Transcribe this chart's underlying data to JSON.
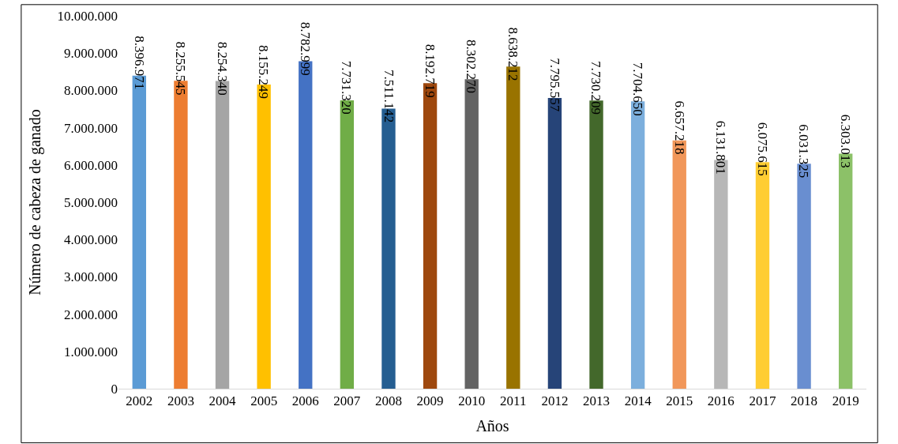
{
  "chart_data": {
    "type": "bar",
    "xlabel": "Años",
    "ylabel": "Número de cabeza de ganado",
    "categories": [
      "2002",
      "2003",
      "2004",
      "2005",
      "2006",
      "2007",
      "2008",
      "2009",
      "2010",
      "2011",
      "2012",
      "2013",
      "2014",
      "2015",
      "2016",
      "2017",
      "2018",
      "2019"
    ],
    "values": [
      8396971,
      8255545,
      8254340,
      8155249,
      8782999,
      7731320,
      7511142,
      8192719,
      8302270,
      8638212,
      7795557,
      7730209,
      7704650,
      6657218,
      6131801,
      6075615,
      6031325,
      6303013
    ],
    "colors": [
      "#5b9bd5",
      "#ed7d31",
      "#a5a5a5",
      "#ffc000",
      "#4472c4",
      "#70ad47",
      "#255e91",
      "#9e480e",
      "#636363",
      "#997300",
      "#264478",
      "#43682b",
      "#7cafdd",
      "#f1975a",
      "#b7b7b7",
      "#ffcd33",
      "#698ed0",
      "#8cc168"
    ],
    "ylim": [
      0,
      10000000
    ],
    "yticks": [
      0,
      {
        "value": 1000000,
        "label": "1.000.000"
      },
      {
        "value": 2000000,
        "label": "2.000.000"
      },
      {
        "value": 3000000,
        "label": "3.000.000"
      },
      {
        "value": 4000000,
        "label": "4.000.000"
      },
      {
        "value": 5000000,
        "label": "5.000.000"
      },
      {
        "value": 6000000,
        "label": "6.000.000"
      },
      {
        "value": 7000000,
        "label": "7.000.000"
      },
      {
        "value": 8000000,
        "label": "8.000.000"
      },
      {
        "value": 9000000,
        "label": "9.000.000"
      },
      {
        "value": 10000000,
        "label": "10.000.000"
      }
    ],
    "value_labels": [
      "8.396.971",
      "8.255.545",
      "8.254.340",
      "8.155.249",
      "8.782.999",
      "7.731.320",
      "7.511.142",
      "8.192.719",
      "8.302.270",
      "8.638.212",
      "7.795.557",
      "7.730.209",
      "7.704.650",
      "6.657.218",
      "6.131.801",
      "6.075.615",
      "6.031.325",
      "6.303.013"
    ]
  }
}
